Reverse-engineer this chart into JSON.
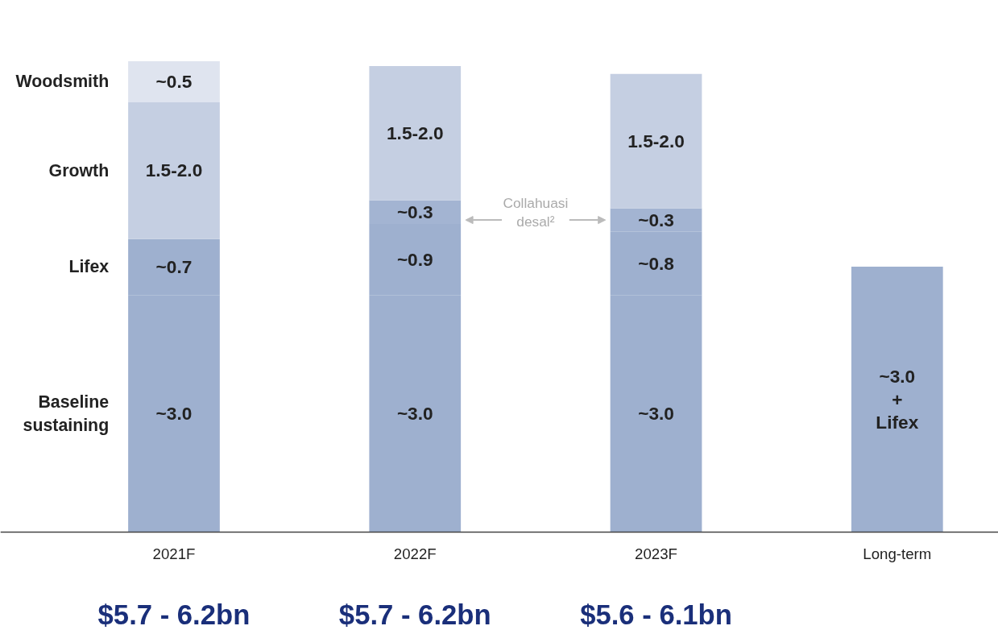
{
  "chart_data": {
    "type": "bar",
    "stacked": true,
    "grid": false,
    "annotations": [
      "~3.0\n+\nLifex"
    ],
    "categories": [
      "2021F",
      "2022F",
      "2023F",
      "Long-term"
    ],
    "series": [
      {
        "name": "Baseline sustaining",
        "color": "#9eb0cf",
        "values": [
          3.0,
          3.0,
          3.0,
          3.36
        ],
        "value_labels": [
          "~3.0",
          "~3.0",
          "~3.0",
          null
        ]
      },
      {
        "name": "Lifex",
        "color": "#9eb0cf",
        "values": [
          0.71,
          0.9,
          0.8,
          null
        ],
        "value_labels": [
          "~0.7",
          "~0.9",
          "~0.8",
          null
        ]
      },
      {
        "name": "Collahuasi desal²",
        "color": "#a3b4d2",
        "values": [
          null,
          0.3,
          0.3,
          null
        ],
        "value_labels": [
          null,
          "~0.3",
          "~0.3",
          null
        ]
      },
      {
        "name": "Growth",
        "color": "#c5cfe2",
        "values": [
          1.73,
          1.7,
          1.7,
          null
        ],
        "value_labels": [
          "1.5-2.0",
          "1.5-2.0",
          "1.5-2.0",
          null
        ]
      },
      {
        "name": "Woodsmith",
        "color": "#dfe4ef",
        "values": [
          0.52,
          null,
          null,
          null
        ],
        "value_labels": [
          "~0.5",
          null,
          null,
          null
        ]
      }
    ],
    "totals": [
      "$5.7 - 6.2bn",
      "$5.7 - 6.2bn",
      "$5.6 - 6.1bn",
      null
    ]
  }
}
